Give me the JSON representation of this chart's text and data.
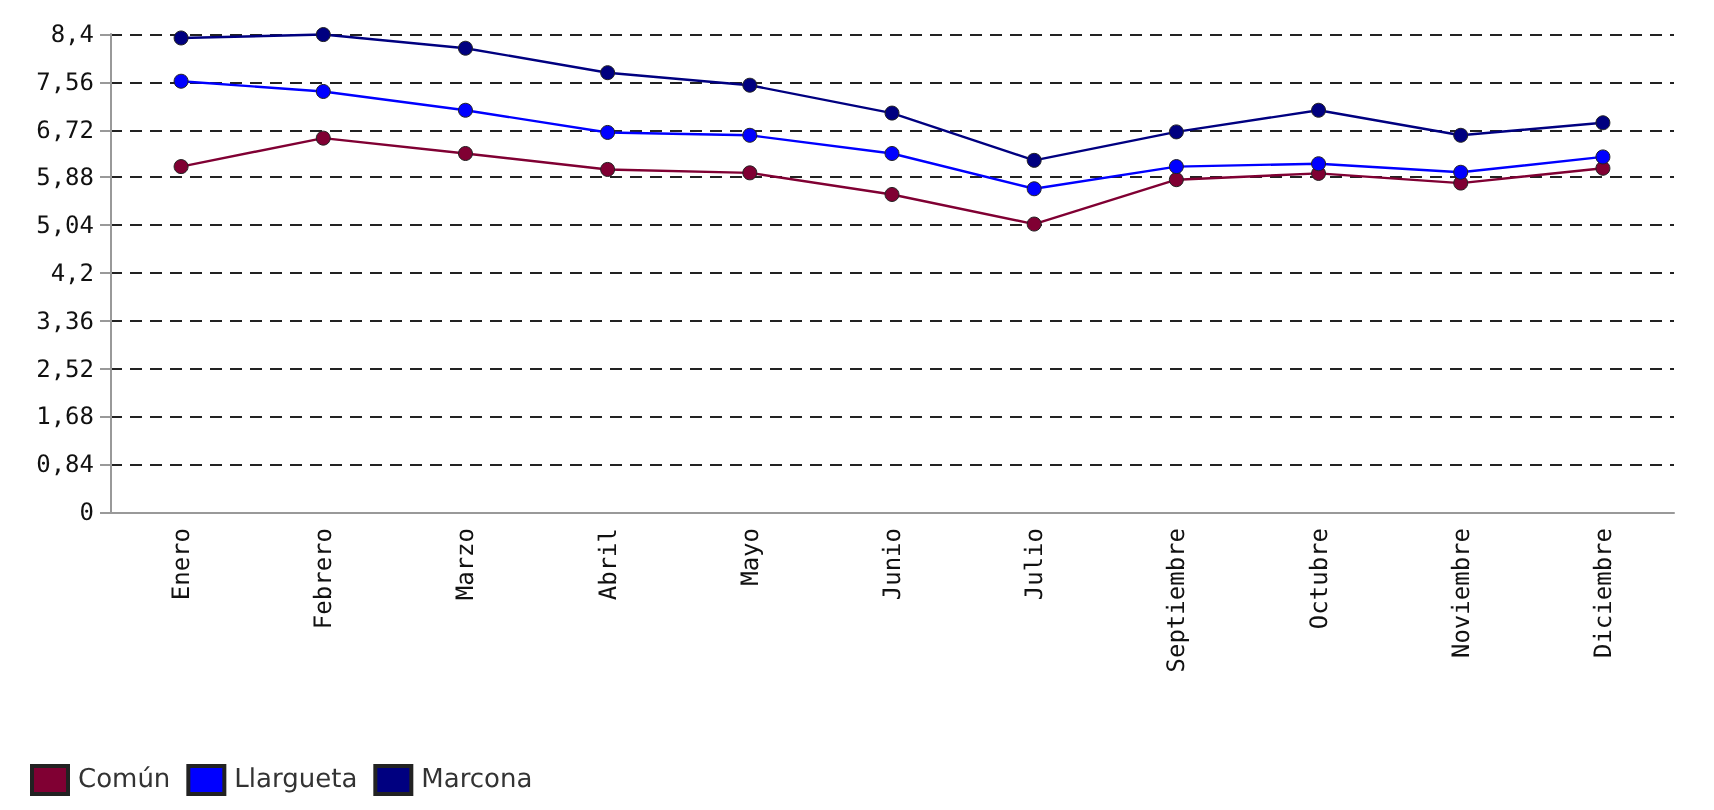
{
  "chart_data": {
    "type": "line",
    "categories": [
      "Enero",
      "Febrero",
      "Marzo",
      "Abril",
      "Mayo",
      "Junio",
      "Julio",
      "Septiembre",
      "Octubre",
      "Noviembre",
      "Diciembre"
    ],
    "series": [
      {
        "name": "Común",
        "color": "#800033",
        "values": [
          6.07,
          6.57,
          6.3,
          6.02,
          5.96,
          5.58,
          5.06,
          5.84,
          5.95,
          5.78,
          6.04
        ]
      },
      {
        "name": "Llargueta",
        "color": "#0000ff",
        "values": [
          7.57,
          7.39,
          7.06,
          6.67,
          6.62,
          6.3,
          5.68,
          6.07,
          6.12,
          5.97,
          6.24
        ]
      },
      {
        "name": "Marcona",
        "color": "#000080",
        "values": [
          8.33,
          8.39,
          8.15,
          7.72,
          7.5,
          7.01,
          6.18,
          6.68,
          7.06,
          6.62,
          6.84
        ]
      }
    ],
    "ylim": [
      0,
      8.4
    ],
    "yticks": [
      0,
      {
        "value": 0.84,
        "label": "0,84"
      },
      {
        "value": 1.68,
        "label": "1,68"
      },
      {
        "value": 2.52,
        "label": "2,52"
      },
      {
        "value": 3.36,
        "label": "3,36"
      },
      {
        "value": 4.2,
        "label": "4,2"
      },
      {
        "value": 5.04,
        "label": "5,04"
      },
      {
        "value": 5.88,
        "label": "5,88"
      },
      {
        "value": 6.72,
        "label": "6,72"
      },
      {
        "value": 7.56,
        "label": "7,56"
      },
      {
        "value": 8.4,
        "label": "8,4"
      }
    ],
    "grid": "y",
    "legend": "bottom left",
    "marker": "circle",
    "line_style": "solid"
  }
}
